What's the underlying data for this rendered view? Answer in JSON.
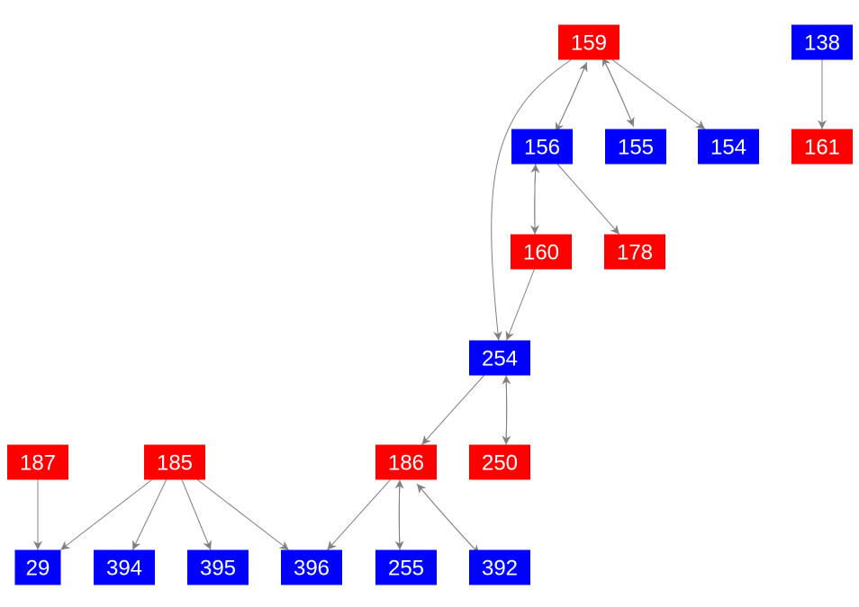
{
  "colors": {
    "red": "#ff0000",
    "blue": "#0000ff",
    "edge": "#808080"
  },
  "nodes": [
    {
      "id": "159",
      "label": "159",
      "color": "red"
    },
    {
      "id": "138",
      "label": "138",
      "color": "blue"
    },
    {
      "id": "156",
      "label": "156",
      "color": "blue"
    },
    {
      "id": "155",
      "label": "155",
      "color": "blue"
    },
    {
      "id": "154",
      "label": "154",
      "color": "blue"
    },
    {
      "id": "161",
      "label": "161",
      "color": "red"
    },
    {
      "id": "160",
      "label": "160",
      "color": "red"
    },
    {
      "id": "178",
      "label": "178",
      "color": "red"
    },
    {
      "id": "254",
      "label": "254",
      "color": "blue"
    },
    {
      "id": "187",
      "label": "187",
      "color": "red"
    },
    {
      "id": "185",
      "label": "185",
      "color": "red"
    },
    {
      "id": "186",
      "label": "186",
      "color": "red"
    },
    {
      "id": "250",
      "label": "250",
      "color": "red"
    },
    {
      "id": "29",
      "label": "29",
      "color": "blue"
    },
    {
      "id": "394",
      "label": "394",
      "color": "blue"
    },
    {
      "id": "395",
      "label": "395",
      "color": "blue"
    },
    {
      "id": "396",
      "label": "396",
      "color": "blue"
    },
    {
      "id": "255",
      "label": "255",
      "color": "blue"
    },
    {
      "id": "392",
      "label": "392",
      "color": "blue"
    }
  ],
  "edges": [
    [
      "159",
      "156"
    ],
    [
      "156",
      "159"
    ],
    [
      "159",
      "155"
    ],
    [
      "155",
      "159"
    ],
    [
      "159",
      "154"
    ],
    [
      "159",
      "254"
    ],
    [
      "138",
      "161"
    ],
    [
      "156",
      "160"
    ],
    [
      "160",
      "156"
    ],
    [
      "156",
      "178"
    ],
    [
      "160",
      "254"
    ],
    [
      "254",
      "186"
    ],
    [
      "254",
      "250"
    ],
    [
      "250",
      "254"
    ],
    [
      "187",
      "29"
    ],
    [
      "185",
      "29"
    ],
    [
      "185",
      "394"
    ],
    [
      "185",
      "395"
    ],
    [
      "185",
      "396"
    ],
    [
      "186",
      "396"
    ],
    [
      "186",
      "255"
    ],
    [
      "255",
      "186"
    ],
    [
      "186",
      "392"
    ],
    [
      "392",
      "186"
    ]
  ]
}
